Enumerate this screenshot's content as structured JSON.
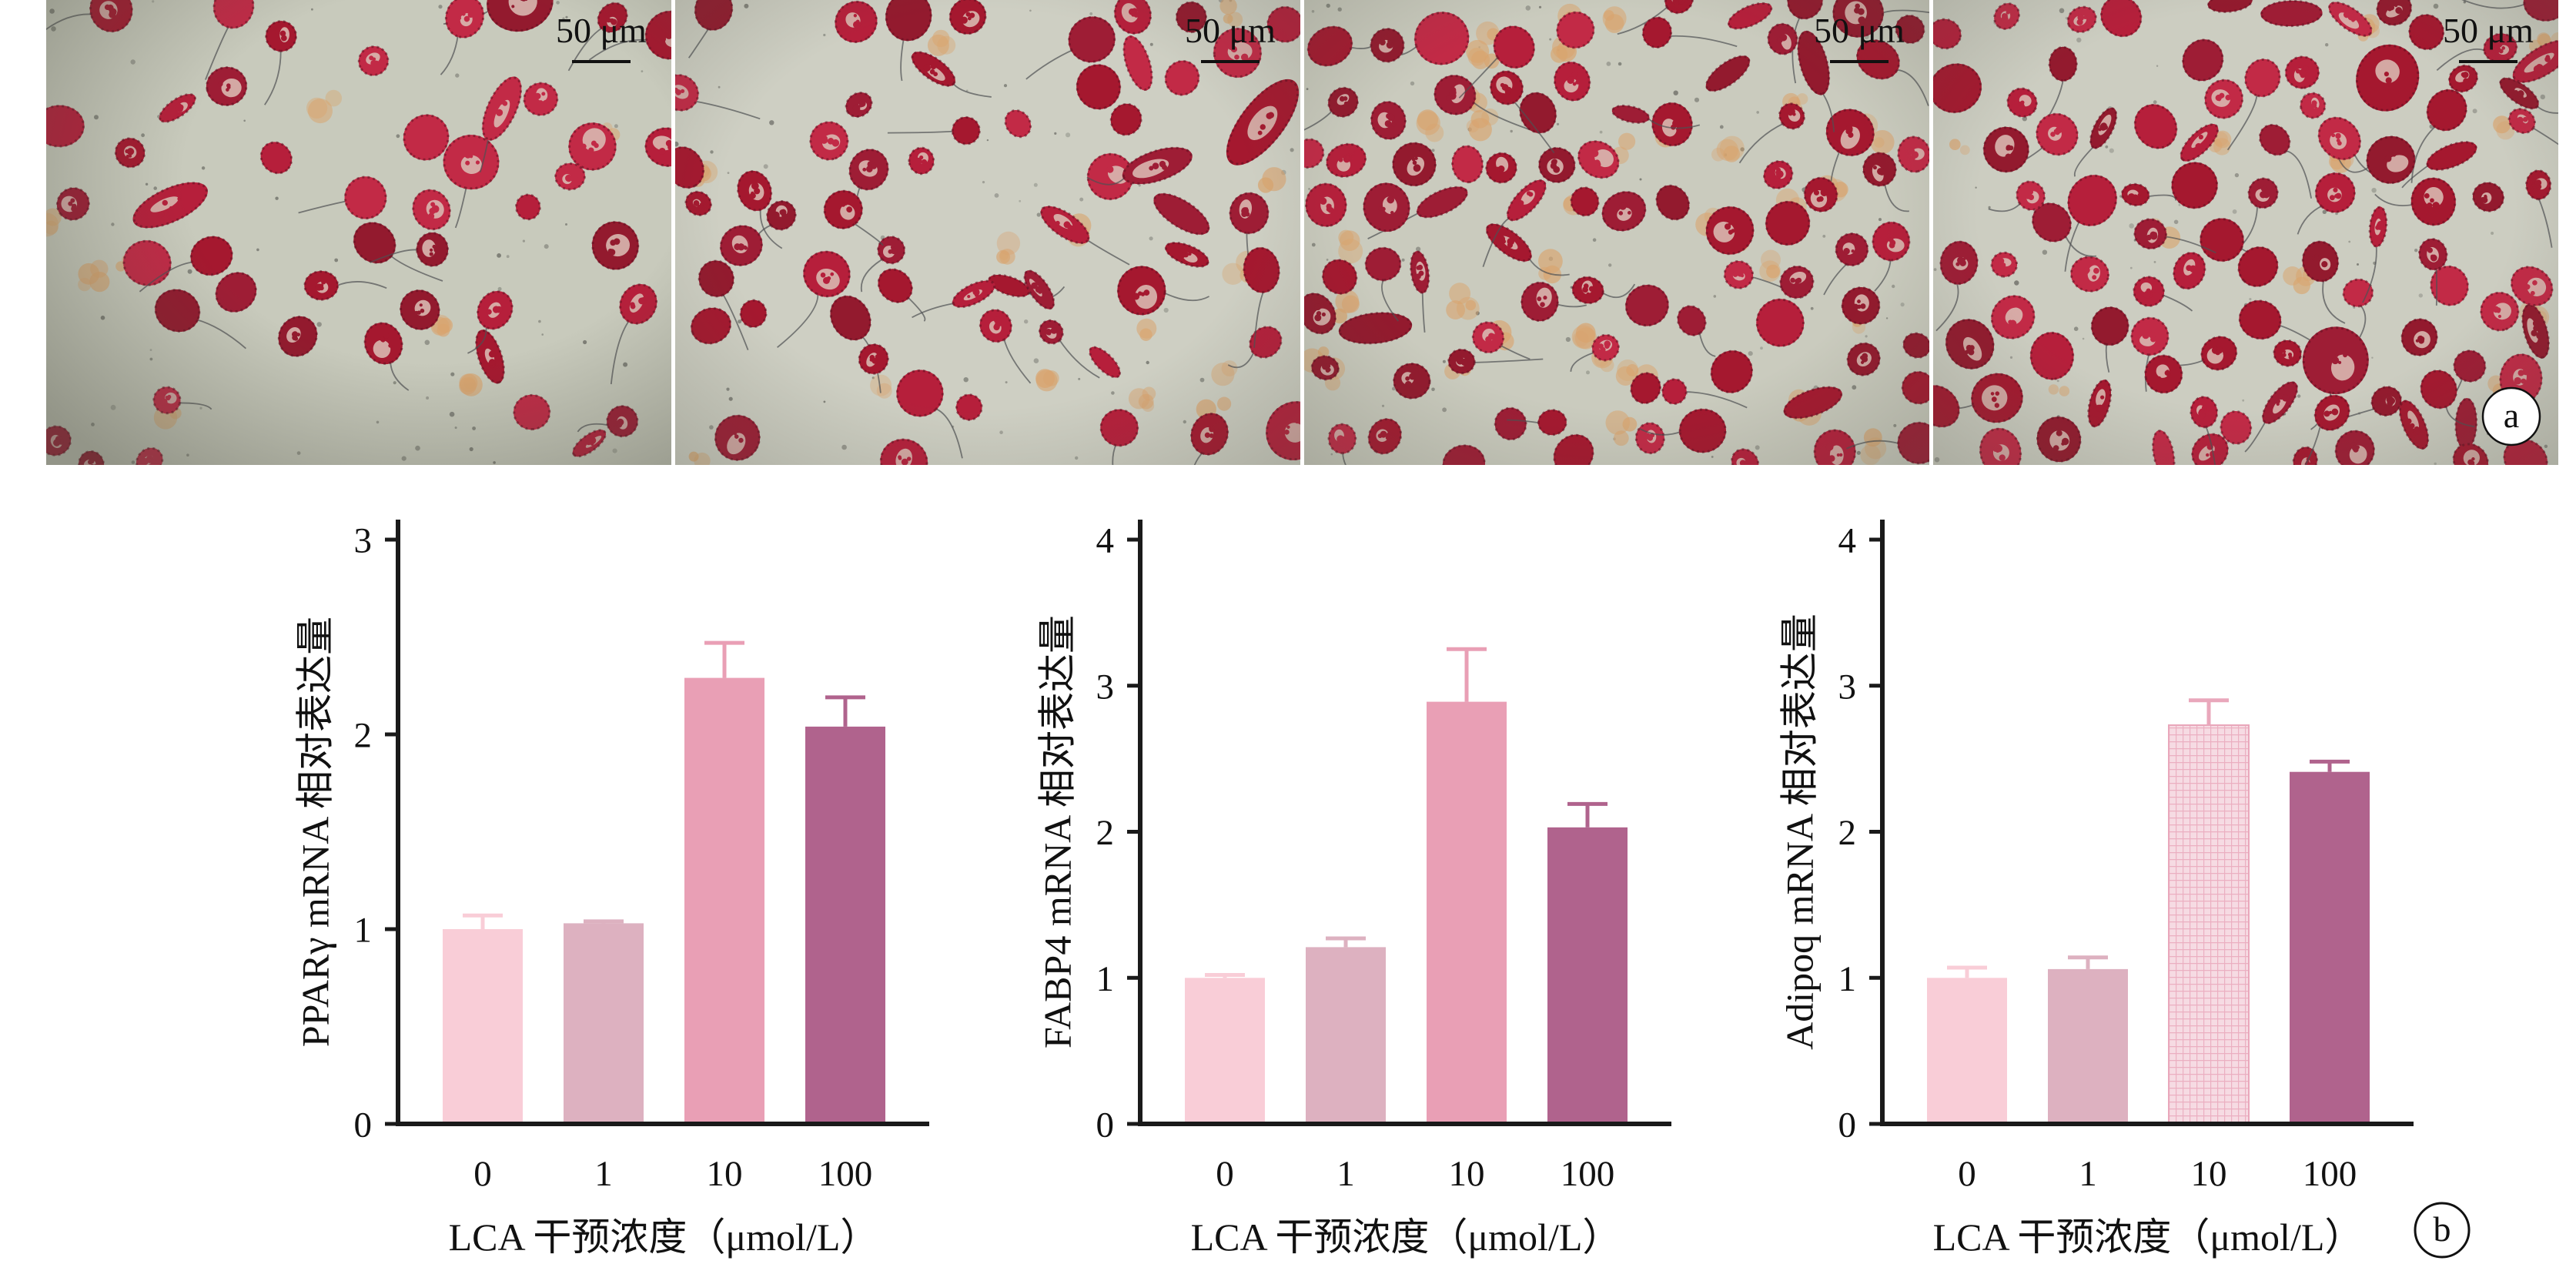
{
  "panel_a": {
    "label": "a",
    "micrographs": [
      {
        "scale_bar": "50 μm"
      },
      {
        "scale_bar": "50 μm"
      },
      {
        "scale_bar": "50 μm"
      },
      {
        "scale_bar": "50 μm"
      }
    ]
  },
  "panel_b": {
    "label": "b"
  },
  "colors": {
    "axis": "#1a1a1a",
    "micrograph_background": "#cbcbbf",
    "stain": "#a5182f"
  },
  "chart_data": [
    {
      "type": "bar",
      "categories": [
        "0",
        "1",
        "10",
        "100"
      ],
      "values": [
        1.0,
        1.03,
        2.29,
        2.04
      ],
      "error_up": [
        0.07,
        0.01,
        0.18,
        0.15
      ],
      "xlabel": "LCA 干预浓度（μmol/L）",
      "ylabel": "PPARγ mRNA 相对表达量",
      "ylim": [
        0,
        3
      ],
      "yticks": [
        0,
        1,
        2,
        3
      ],
      "bar_colors": [
        "#f9cdd7",
        "#ddb1c0",
        "#e99fb5",
        "#b0638d"
      ],
      "hatched": [
        false,
        false,
        false,
        false
      ],
      "grid": false
    },
    {
      "type": "bar",
      "categories": [
        "0",
        "1",
        "10",
        "100"
      ],
      "values": [
        1.0,
        1.21,
        2.89,
        2.03
      ],
      "error_up": [
        0.02,
        0.06,
        0.36,
        0.16
      ],
      "xlabel": "LCA 干预浓度（μmol/L）",
      "ylabel": "FABP4 mRNA 相对表达量",
      "ylim": [
        0,
        4
      ],
      "yticks": [
        0,
        1,
        2,
        3,
        4
      ],
      "bar_colors": [
        "#f9cdd7",
        "#ddb1c0",
        "#e99fb5",
        "#b0638d"
      ],
      "hatched": [
        false,
        false,
        false,
        false
      ],
      "grid": false
    },
    {
      "type": "bar",
      "categories": [
        "0",
        "1",
        "10",
        "100"
      ],
      "values": [
        1.0,
        1.06,
        2.73,
        2.41
      ],
      "error_up": [
        0.07,
        0.08,
        0.17,
        0.07
      ],
      "xlabel": "LCA 干预浓度（μmol/L）",
      "ylabel": "Adipoq mRNA 相对表达量",
      "ylim": [
        0,
        4
      ],
      "yticks": [
        0,
        1,
        2,
        3,
        4
      ],
      "bar_colors": [
        "#f9cdd7",
        "#ddb1c0",
        "#e9a7bb",
        "#b0638d"
      ],
      "hatched": [
        false,
        false,
        true,
        false
      ],
      "grid": false
    }
  ]
}
